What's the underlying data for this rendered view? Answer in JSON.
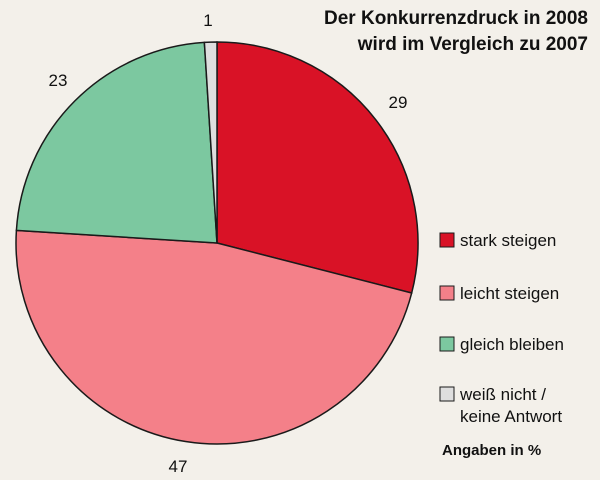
{
  "chart_data": {
    "type": "pie",
    "title_lines": [
      "Der Konkurrenzdruck in 2008",
      "wird im Vergleich zu 2007"
    ],
    "slices": [
      {
        "label": "stark steigen",
        "value": 29,
        "value_label": "29",
        "color": "#d91226"
      },
      {
        "label": "leicht steigen",
        "value": 47,
        "value_label": "47",
        "color": "#f48089"
      },
      {
        "label": "gleich bleiben",
        "value": 23,
        "value_label": "23",
        "color": "#7cc8a0"
      },
      {
        "label_lines": [
          "weiß nicht /",
          "keine Antwort"
        ],
        "value": 1,
        "value_label": "1",
        "color": "#dedede"
      }
    ],
    "start": "12 o'clock",
    "direction": "clockwise",
    "note": "Angaben in %",
    "legend_position": "right"
  }
}
